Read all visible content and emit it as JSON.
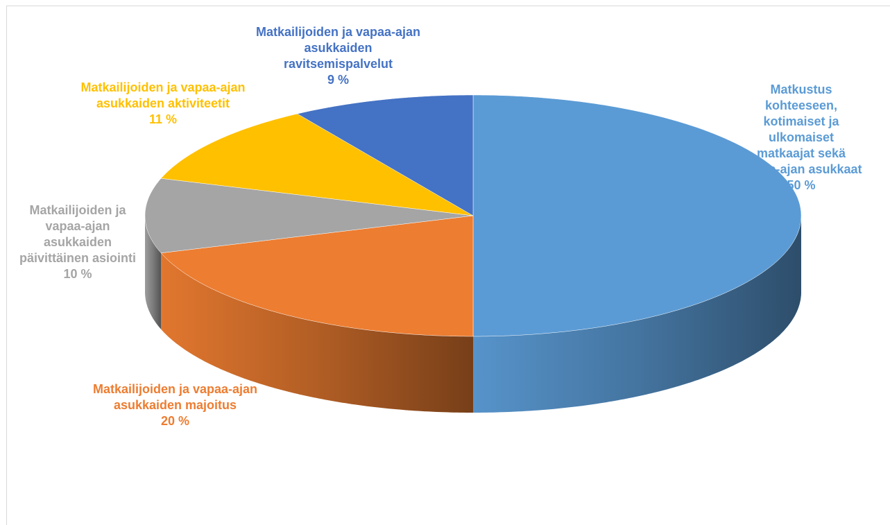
{
  "chart_data": {
    "type": "pie",
    "categories": [
      "Matkustus kohteeseen, kotimaiset ja ulkomaiset matkaajat sekä vapaa-ajan asukkaat",
      "Matkailijoiden ja vapaa-ajan asukkaiden majoitus",
      "Matkailijoiden ja vapaa-ajan asukkaiden päivittäinen asiointi",
      "Matkailijoiden ja vapaa-ajan asukkaiden aktiviteetit",
      "Matkailijoiden ja vapaa-ajan asukkaiden ravitsemispalvelut"
    ],
    "values": [
      50,
      20,
      10,
      11,
      9
    ],
    "value_labels": [
      "50 %",
      "20 %",
      "10 %",
      "11 %",
      "9 %"
    ],
    "colors": [
      "#5b9bd5",
      "#ed7d31",
      "#a5a5a5",
      "#ffc000",
      "#4472c4"
    ]
  }
}
